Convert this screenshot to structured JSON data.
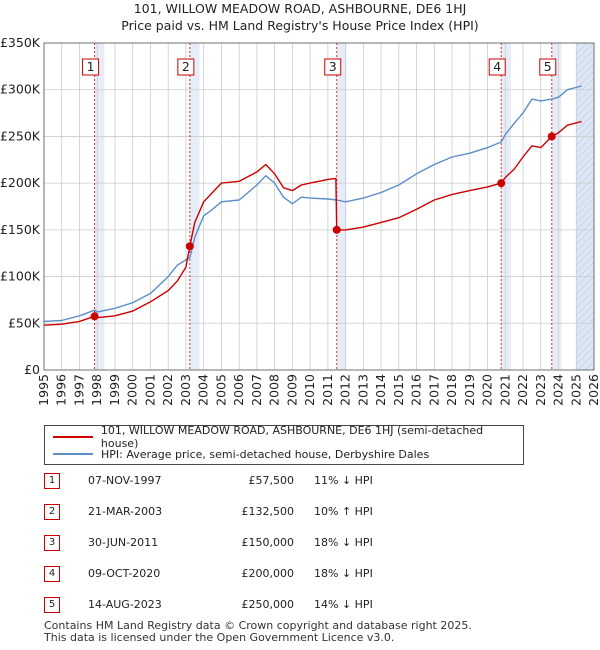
{
  "title_line1": "101, WILLOW MEADOW ROAD, ASHBOURNE, DE6 1HJ",
  "title_line2": "Price paid vs. HM Land Registry's House Price Index (HPI)",
  "colors": {
    "property": "#cc0000",
    "hpi": "#5b8ec7",
    "shade": "#dce6f5",
    "grid": "#cccccc"
  },
  "legend": {
    "property_label": "101, WILLOW MEADOW ROAD, ASHBOURNE, DE6 1HJ (semi-detached house)",
    "hpi_label": "HPI: Average price, semi-detached house, Derbyshire Dales"
  },
  "sales": [
    {
      "num": "1",
      "date": "07-NOV-1997",
      "price": "£57,500",
      "hpi": "11% ↓ HPI",
      "year": 1997.85,
      "value": 57500
    },
    {
      "num": "2",
      "date": "21-MAR-2003",
      "price": "£132,500",
      "hpi": "10% ↑ HPI",
      "year": 2003.22,
      "value": 132500
    },
    {
      "num": "3",
      "date": "30-JUN-2011",
      "price": "£150,000",
      "hpi": "18% ↓ HPI",
      "year": 2011.5,
      "value": 150000
    },
    {
      "num": "4",
      "date": "09-OCT-2020",
      "price": "£200,000",
      "hpi": "18% ↓ HPI",
      "year": 2020.77,
      "value": 200000
    },
    {
      "num": "5",
      "date": "14-AUG-2023",
      "price": "£250,000",
      "hpi": "14% ↓ HPI",
      "year": 2023.62,
      "value": 250000
    }
  ],
  "footer_line1": "Contains HM Land Registry data © Crown copyright and database right 2025.",
  "footer_line2": "This data is licensed under the Open Government Licence v3.0.",
  "chart_data": {
    "type": "line",
    "title": "101, WILLOW MEADOW ROAD, ASHBOURNE, DE6 1HJ — Price paid vs. HM Land Registry's House Price Index (HPI)",
    "xlabel": "",
    "ylabel": "",
    "xlim": [
      1995,
      2026
    ],
    "ylim": [
      0,
      350000
    ],
    "y_ticks": [
      0,
      50000,
      100000,
      150000,
      200000,
      250000,
      300000,
      350000
    ],
    "y_tick_labels": [
      "£0",
      "£50K",
      "£100K",
      "£150K",
      "£200K",
      "£250K",
      "£300K",
      "£350K"
    ],
    "x_ticks": [
      1995,
      1996,
      1997,
      1998,
      1999,
      2000,
      2001,
      2002,
      2003,
      2004,
      2005,
      2006,
      2007,
      2008,
      2009,
      2010,
      2011,
      2012,
      2013,
      2014,
      2015,
      2016,
      2017,
      2018,
      2019,
      2020,
      2021,
      2022,
      2023,
      2024,
      2025,
      2026
    ],
    "x_tick_labels": [
      "1995",
      "1996",
      "1997",
      "1998",
      "1999",
      "2000",
      "2001",
      "2002",
      "2003",
      "2004",
      "2005",
      "2006",
      "2007",
      "2008",
      "2009",
      "2010",
      "2011",
      "2012",
      "2013",
      "2014",
      "2015",
      "2016",
      "2017",
      "2018",
      "2019",
      "2020",
      "2021",
      "2022",
      "2023",
      "2024",
      "2025",
      "2026"
    ],
    "grid": true,
    "future_shading_from": 2025.0,
    "series": [
      {
        "name": "HPI: Average price, semi-detached house, Derbyshire Dales",
        "x": [
          1995,
          1996,
          1997,
          1997.85,
          1998,
          1999,
          2000,
          2001,
          2002,
          2002.5,
          2003,
          2003.22,
          2003.5,
          2004,
          2004.5,
          2005,
          2006,
          2007,
          2007.5,
          2008,
          2008.5,
          2009,
          2009.5,
          2010,
          2011,
          2011.5,
          2012,
          2013,
          2014,
          2015,
          2016,
          2017,
          2018,
          2019,
          2020,
          2020.77,
          2021,
          2021.5,
          2022,
          2022.5,
          2023,
          2023.62,
          2024,
          2024.5,
          2025.3
        ],
        "y": [
          52000,
          53000,
          58000,
          64000,
          62000,
          66000,
          72000,
          82000,
          100000,
          112000,
          118000,
          120000,
          142000,
          165000,
          172000,
          180000,
          182000,
          198000,
          208000,
          200000,
          185000,
          178000,
          185000,
          184000,
          183000,
          182000,
          180000,
          184000,
          190000,
          198000,
          210000,
          220000,
          228000,
          232000,
          238000,
          244000,
          252000,
          264000,
          275000,
          290000,
          288000,
          290000,
          292000,
          300000,
          304000
        ]
      },
      {
        "name": "101, WILLOW MEADOW ROAD, ASHBOURNE, DE6 1HJ (semi-detached house)",
        "x": [
          1995,
          1996,
          1997,
          1997.85,
          1998,
          1999,
          2000,
          2001,
          2002,
          2002.5,
          2003,
          2003.22,
          2003.5,
          2004,
          2004.5,
          2005,
          2006,
          2007,
          2007.5,
          2008,
          2008.5,
          2009,
          2009.5,
          2010,
          2011,
          2011.45,
          2011.5,
          2012,
          2013,
          2014,
          2015,
          2016,
          2017,
          2018,
          2019,
          2020,
          2020.77,
          2021,
          2021.5,
          2022,
          2022.5,
          2023,
          2023.62,
          2024,
          2024.5,
          2025.3
        ],
        "y": [
          48000,
          49000,
          52000,
          57500,
          56000,
          58000,
          63000,
          73000,
          85000,
          95000,
          110000,
          132500,
          158000,
          180000,
          190000,
          200000,
          202000,
          212000,
          220000,
          210000,
          195000,
          192000,
          198000,
          200000,
          204000,
          205000,
          150000,
          150000,
          153000,
          158000,
          163000,
          172000,
          182000,
          188000,
          192000,
          196000,
          200000,
          206000,
          215000,
          228000,
          240000,
          238000,
          250000,
          254000,
          262000,
          266000
        ]
      }
    ],
    "annotations": [
      "1",
      "2",
      "3",
      "4",
      "5"
    ]
  }
}
